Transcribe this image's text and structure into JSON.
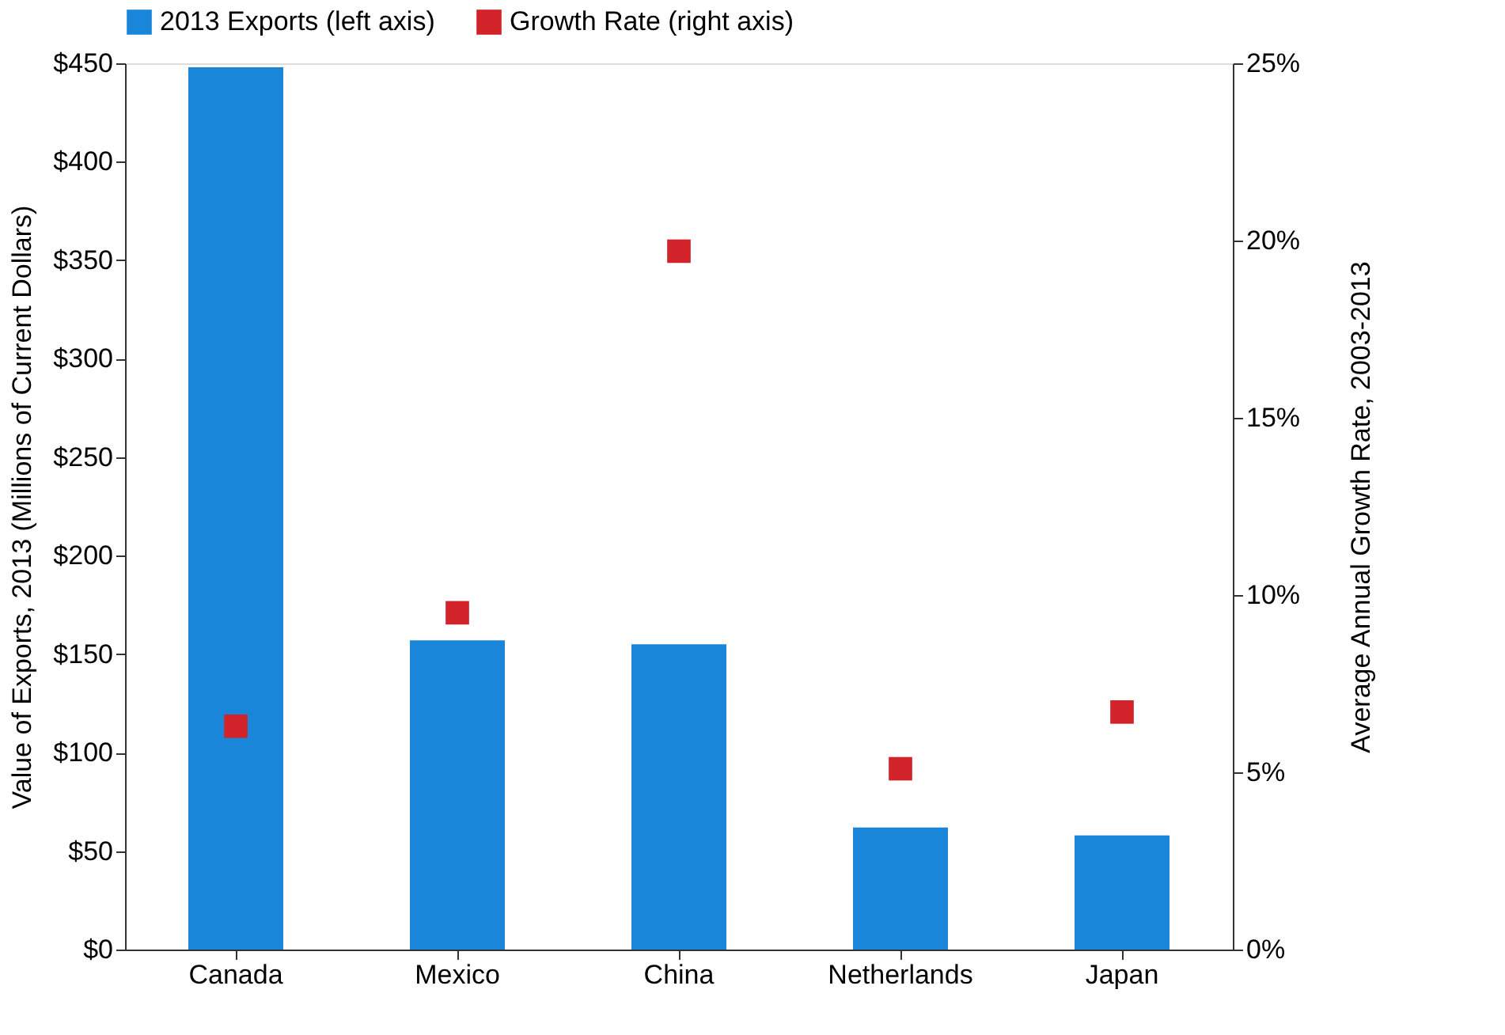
{
  "chart_data": {
    "type": "bar",
    "categories": [
      "Canada",
      "Mexico",
      "China",
      "Netherlands",
      "Japan"
    ],
    "series": [
      {
        "name": "2013 Exports (left axis)",
        "color": "#1a86d9",
        "values": [
          448,
          157,
          155,
          62,
          58
        ]
      },
      {
        "name": "Growth Rate (right axis)",
        "type": "scatter",
        "axis": "y2",
        "color": "#d2232a",
        "values": [
          6.3,
          9.5,
          19.7,
          5.1,
          6.7
        ]
      }
    ],
    "ylabel": "Value of Exports, 2013 (Millions of Current Dollars)",
    "y2label": "Average Annual Growth Rate, 2003-2013",
    "ylim": [
      0,
      450
    ],
    "yticks": [
      {
        "value": 0,
        "label": "$0"
      },
      {
        "value": 50,
        "label": "$50"
      },
      {
        "value": 100,
        "label": "$100"
      },
      {
        "value": 150,
        "label": "$150"
      },
      {
        "value": 200,
        "label": "$200"
      },
      {
        "value": 250,
        "label": "$250"
      },
      {
        "value": 300,
        "label": "$300"
      },
      {
        "value": 350,
        "label": "$350"
      },
      {
        "value": 400,
        "label": "$400"
      },
      {
        "value": 450,
        "label": "$450"
      }
    ],
    "y2lim": [
      0,
      25
    ],
    "y2ticks": [
      {
        "value": 0,
        "label": "0%"
      },
      {
        "value": 5,
        "label": "5%"
      },
      {
        "value": 10,
        "label": "10%"
      },
      {
        "value": 15,
        "label": "15%"
      },
      {
        "value": 20,
        "label": "20%"
      },
      {
        "value": 25,
        "label": "25%"
      }
    ],
    "marker": "square",
    "grid": false,
    "legend": "top"
  }
}
